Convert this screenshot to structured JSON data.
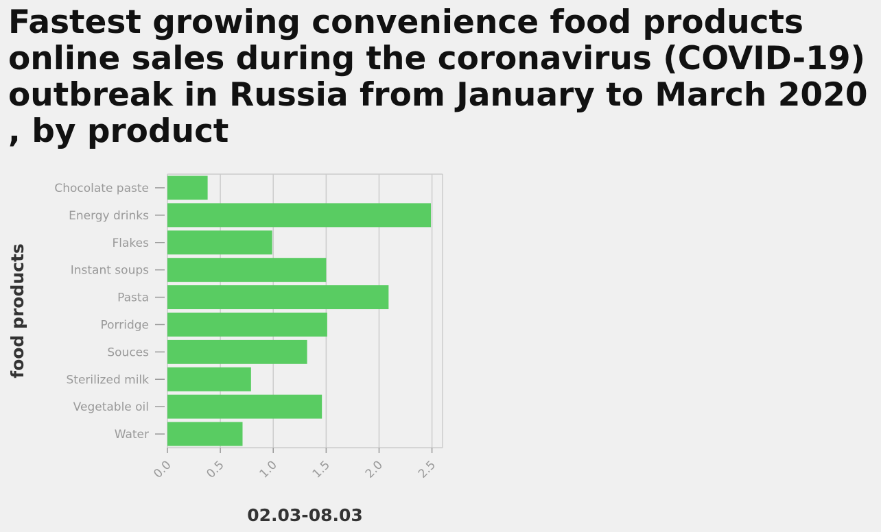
{
  "chart_data": {
    "type": "bar",
    "orientation": "horizontal",
    "title": "Fastest growing convenience food products online sales during the coronavirus (COVID-19) outbreak in Russia from January to March 2020 , by product",
    "xlabel": "02.03-08.03",
    "ylabel": "food products",
    "categories": [
      "Chocolate paste",
      "Energy drinks",
      "Flakes",
      "Instant soups",
      "Pasta",
      "Porridge",
      "Souces",
      "Sterilized milk",
      "Vegetable oil",
      "Water"
    ],
    "values": [
      0.38,
      2.49,
      0.99,
      1.5,
      2.09,
      1.51,
      1.32,
      0.79,
      1.46,
      0.71
    ],
    "xlim": [
      0,
      2.6
    ],
    "xticks": [
      0,
      0.5,
      1,
      1.5,
      2,
      2.5
    ],
    "xtick_labels": [
      "0.0",
      "0.5",
      "1.0",
      "1.5",
      "2.0",
      "2.5"
    ],
    "grid": "vertical",
    "bar_color": "#59cc62"
  }
}
